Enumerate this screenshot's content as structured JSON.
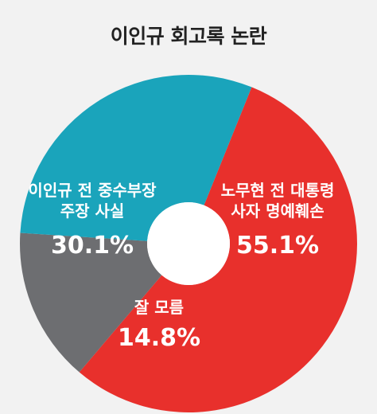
{
  "chart_data": {
    "type": "pie",
    "title": "이인규 회고록 논란",
    "donut": true,
    "slices": [
      {
        "label_lines": [
          "노무현 전 대통령",
          "사자 명예훼손"
        ],
        "value": 55.1,
        "value_label": "55.1%",
        "color": "#e8302c"
      },
      {
        "label_lines": [
          "잘 모름"
        ],
        "value": 14.8,
        "value_label": "14.8%",
        "color": "#6d6e71"
      },
      {
        "label_lines": [
          "이인규 전 중수부장",
          "주장 사실"
        ],
        "value": 30.1,
        "value_label": "30.1%",
        "color": "#1aa4bb"
      }
    ]
  }
}
